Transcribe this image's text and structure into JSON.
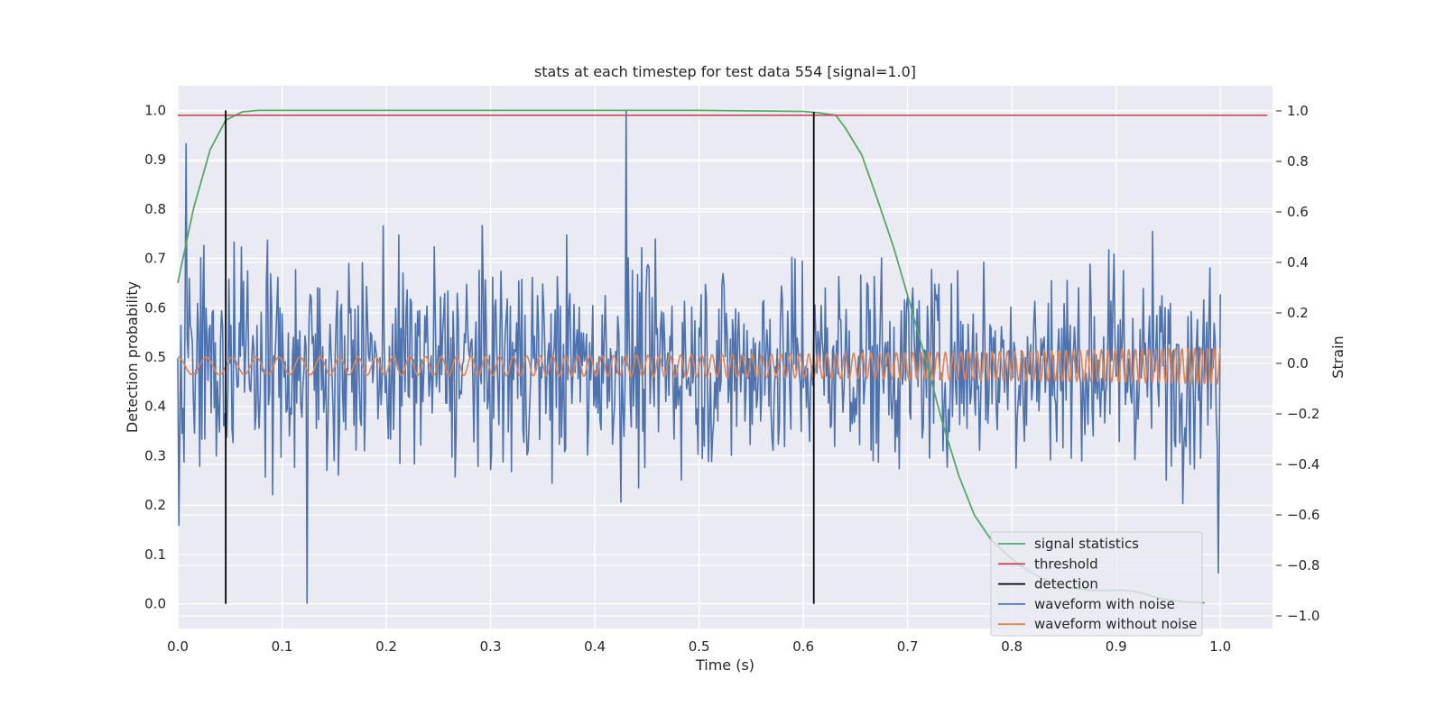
{
  "chart_data": {
    "type": "line",
    "title": "stats at each timestep for test data 554 [signal=1.0]",
    "xlabel": "Time (s)",
    "ylabel_left": "Detection probability",
    "ylabel_right": "Strain",
    "xlim": [
      0.0,
      1.05
    ],
    "ylim_left": [
      -0.05,
      1.05
    ],
    "ylim_right": [
      -1.05,
      1.1
    ],
    "grid": true,
    "legend_position": "lower-right",
    "x_ticks": [
      "0.0",
      "0.1",
      "0.2",
      "0.3",
      "0.4",
      "0.5",
      "0.6",
      "0.7",
      "0.8",
      "0.9",
      "1.0"
    ],
    "y_left_ticks": [
      "0.0",
      "0.1",
      "0.2",
      "0.3",
      "0.4",
      "0.5",
      "0.6",
      "0.7",
      "0.8",
      "0.9",
      "1.0"
    ],
    "y_right_ticks": [
      "−1.0",
      "−0.8",
      "−0.6",
      "−0.4",
      "−0.2",
      "0.0",
      "0.2",
      "0.4",
      "0.6",
      "0.8",
      "1.0"
    ],
    "colors": {
      "signal_statistics": "#55a868",
      "threshold": "#c44e52",
      "detection": "#000000",
      "waveform_with_noise": "#4c72b0",
      "waveform_without_noise": "#dd8452",
      "axes_background": "#eaeaf2",
      "grid": "#ffffff"
    },
    "series": [
      {
        "name": "signal statistics",
        "axis": "left",
        "x": [
          0.0,
          0.015,
          0.031,
          0.046,
          0.062,
          0.077,
          0.1,
          0.2,
          0.3,
          0.4,
          0.5,
          0.6,
          0.615,
          0.631,
          0.64,
          0.656,
          0.671,
          0.687,
          0.702,
          0.718,
          0.733,
          0.749,
          0.764,
          0.78,
          0.795,
          0.81,
          0.826,
          0.842,
          0.857,
          0.873,
          0.888,
          0.904,
          0.919,
          0.935,
          0.95,
          0.966,
          0.985
        ],
        "values": [
          0.65,
          0.8,
          0.92,
          0.98,
          0.997,
          1.0,
          1.0,
          1.0,
          1.0,
          1.0,
          1.0,
          0.998,
          0.995,
          0.99,
          0.965,
          0.91,
          0.82,
          0.72,
          0.61,
          0.49,
          0.37,
          0.26,
          0.18,
          0.13,
          0.1,
          0.075,
          0.055,
          0.04,
          0.032,
          0.028,
          0.027,
          0.028,
          0.025,
          0.015,
          0.008,
          0.004,
          0.002
        ]
      },
      {
        "name": "threshold",
        "axis": "left",
        "x": [
          0.0,
          1.045
        ],
        "values": [
          0.99,
          0.99
        ]
      },
      {
        "name": "detection",
        "axis": "left",
        "segments": [
          {
            "x": 0.046,
            "y": [
              0.0,
              1.0
            ]
          },
          {
            "x": 0.61,
            "y": [
              0.0,
              0.997
            ]
          }
        ]
      },
      {
        "name": "waveform with noise",
        "axis": "right",
        "description_free": true,
        "x_range": [
          0.0,
          1.0
        ],
        "approx_amplitude": 0.4,
        "extremes": [
          {
            "x": 0.008,
            "y": 0.87
          },
          {
            "x": 0.124,
            "y": -0.95
          },
          {
            "x": 0.43,
            "y": 1.0
          },
          {
            "x": 0.998,
            "y": -0.83
          }
        ]
      },
      {
        "name": "waveform without noise",
        "axis": "right",
        "x_range": [
          0.0,
          1.0
        ],
        "amplitude_start": 0.035,
        "amplitude_end": 0.07,
        "cycles": 100
      }
    ]
  }
}
